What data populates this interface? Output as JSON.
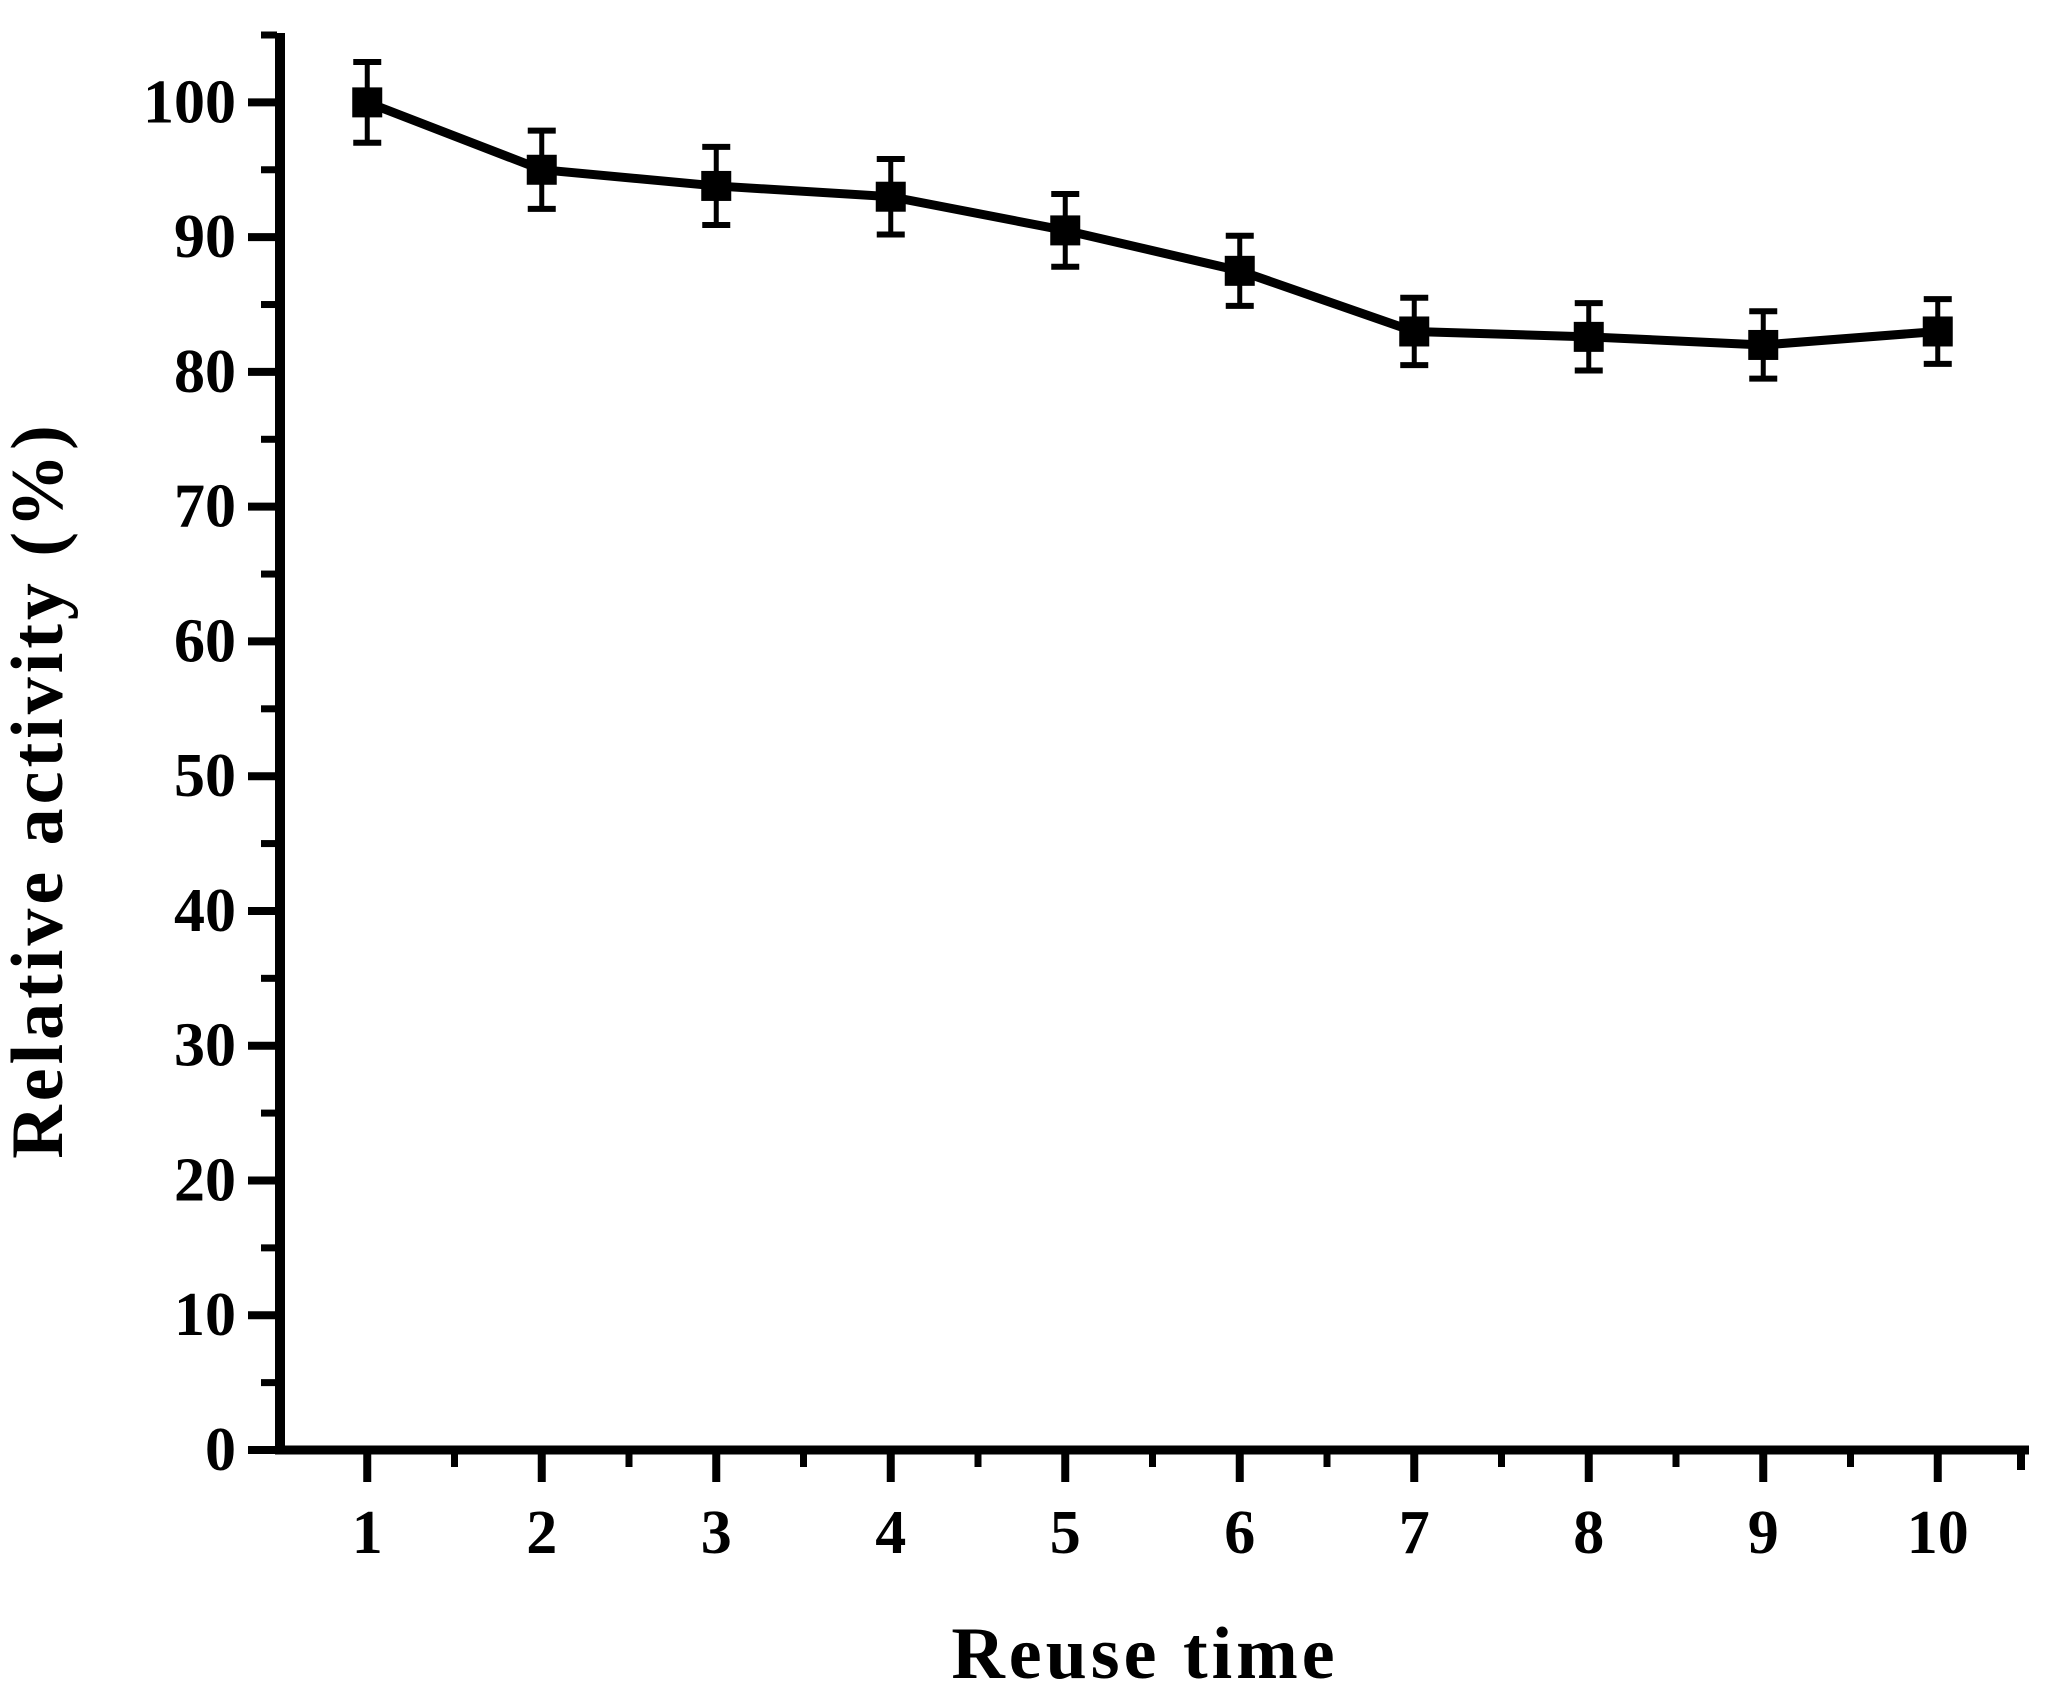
{
  "chart_data": {
    "type": "line",
    "title": "",
    "xlabel": "Reuse time",
    "ylabel": "Relative activity (%)",
    "x": [
      1,
      2,
      3,
      4,
      5,
      6,
      7,
      8,
      9,
      10
    ],
    "x_tick_labels": [
      "1",
      "2",
      "3",
      "4",
      "5",
      "6",
      "7",
      "8",
      "9",
      "10"
    ],
    "y_major_ticks": [
      0,
      10,
      20,
      30,
      40,
      50,
      60,
      70,
      80,
      90,
      100
    ],
    "y_tick_labels": [
      "0",
      "10",
      "20",
      "30",
      "40",
      "50",
      "60",
      "70",
      "80",
      "90",
      "100"
    ],
    "y_minor_step": 5,
    "xlim": [
      0.5,
      10.5
    ],
    "ylim": [
      0,
      105
    ],
    "grid": false,
    "legend": null,
    "series": [
      {
        "name": "Relative activity",
        "marker": "filled-square",
        "color": "#000000",
        "values": [
          100,
          95,
          93.8,
          93,
          90.5,
          87.5,
          83,
          82.6,
          82,
          83
        ],
        "errors": [
          3.0,
          2.9,
          2.9,
          2.8,
          2.7,
          2.6,
          2.5,
          2.5,
          2.5,
          2.4
        ]
      }
    ],
    "colors": {
      "foreground": "#000000",
      "background": "#ffffff"
    }
  }
}
